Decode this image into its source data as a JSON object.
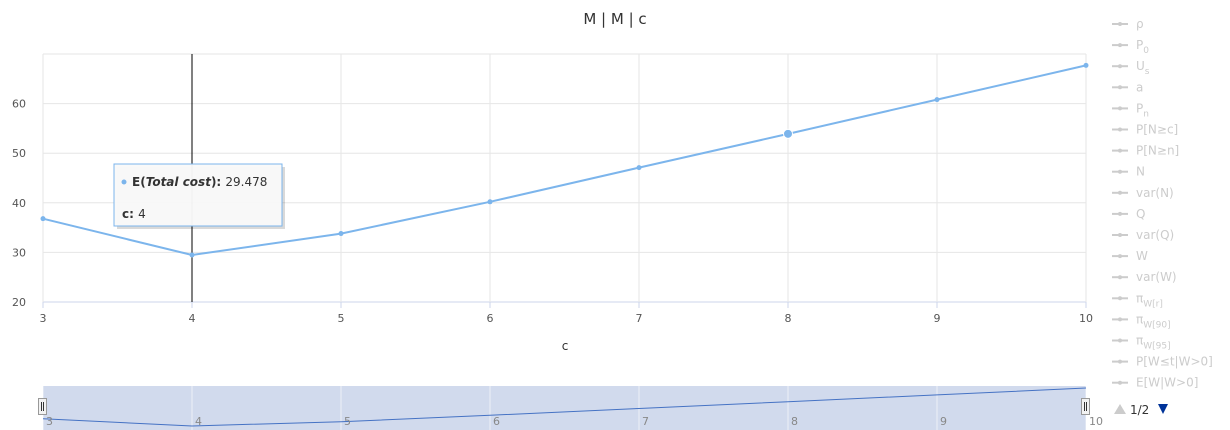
{
  "chart_data": {
    "type": "line",
    "title": "M | M | c",
    "xlabel": "c",
    "ylabel": "",
    "xlim": [
      3,
      10
    ],
    "ylim": [
      20,
      70
    ],
    "yticks": [
      20,
      30,
      40,
      50,
      60
    ],
    "x": [
      3,
      4,
      5,
      6,
      7,
      8,
      9,
      10
    ],
    "series": [
      {
        "name": "E(Total cost)",
        "values": [
          36.8,
          29.478,
          33.8,
          40.2,
          47.1,
          53.9,
          60.8,
          67.7
        ],
        "color": "#7cb5ec"
      }
    ],
    "highlight_index": 5,
    "crosshair_x": 4,
    "tooltip": {
      "series_prefix": "E(",
      "series_italic": "Total cost",
      "series_suffix": "): ",
      "value": "29.478",
      "x_label": "c",
      "x_value": "4"
    },
    "legend": {
      "placement": "right",
      "items": [
        {
          "label": "ρ",
          "sub": ""
        },
        {
          "label": "P",
          "sub": "0"
        },
        {
          "label": "U",
          "sub": "s"
        },
        {
          "label": "a",
          "sub": ""
        },
        {
          "label": "P",
          "sub": "n"
        },
        {
          "label": "P[N≥c]",
          "sub": ""
        },
        {
          "label": "P[N≥n]",
          "sub": ""
        },
        {
          "label": "N",
          "sub": ""
        },
        {
          "label": "var(N)",
          "sub": ""
        },
        {
          "label": "Q",
          "sub": ""
        },
        {
          "label": "var(Q)",
          "sub": ""
        },
        {
          "label": "W",
          "sub": ""
        },
        {
          "label": "var(W)",
          "sub": ""
        },
        {
          "label": "π",
          "sub": "W[r]"
        },
        {
          "label": "π",
          "sub": "W[90]"
        },
        {
          "label": "π",
          "sub": "W[95]"
        },
        {
          "label": "P[W≤t|W>0]",
          "sub": ""
        },
        {
          "label": "E[W|W>0]",
          "sub": ""
        }
      ],
      "pager": "1/2"
    },
    "navigator": {
      "xticks": [
        3,
        4,
        5,
        6,
        7,
        8,
        9,
        10
      ]
    },
    "grid": true
  }
}
